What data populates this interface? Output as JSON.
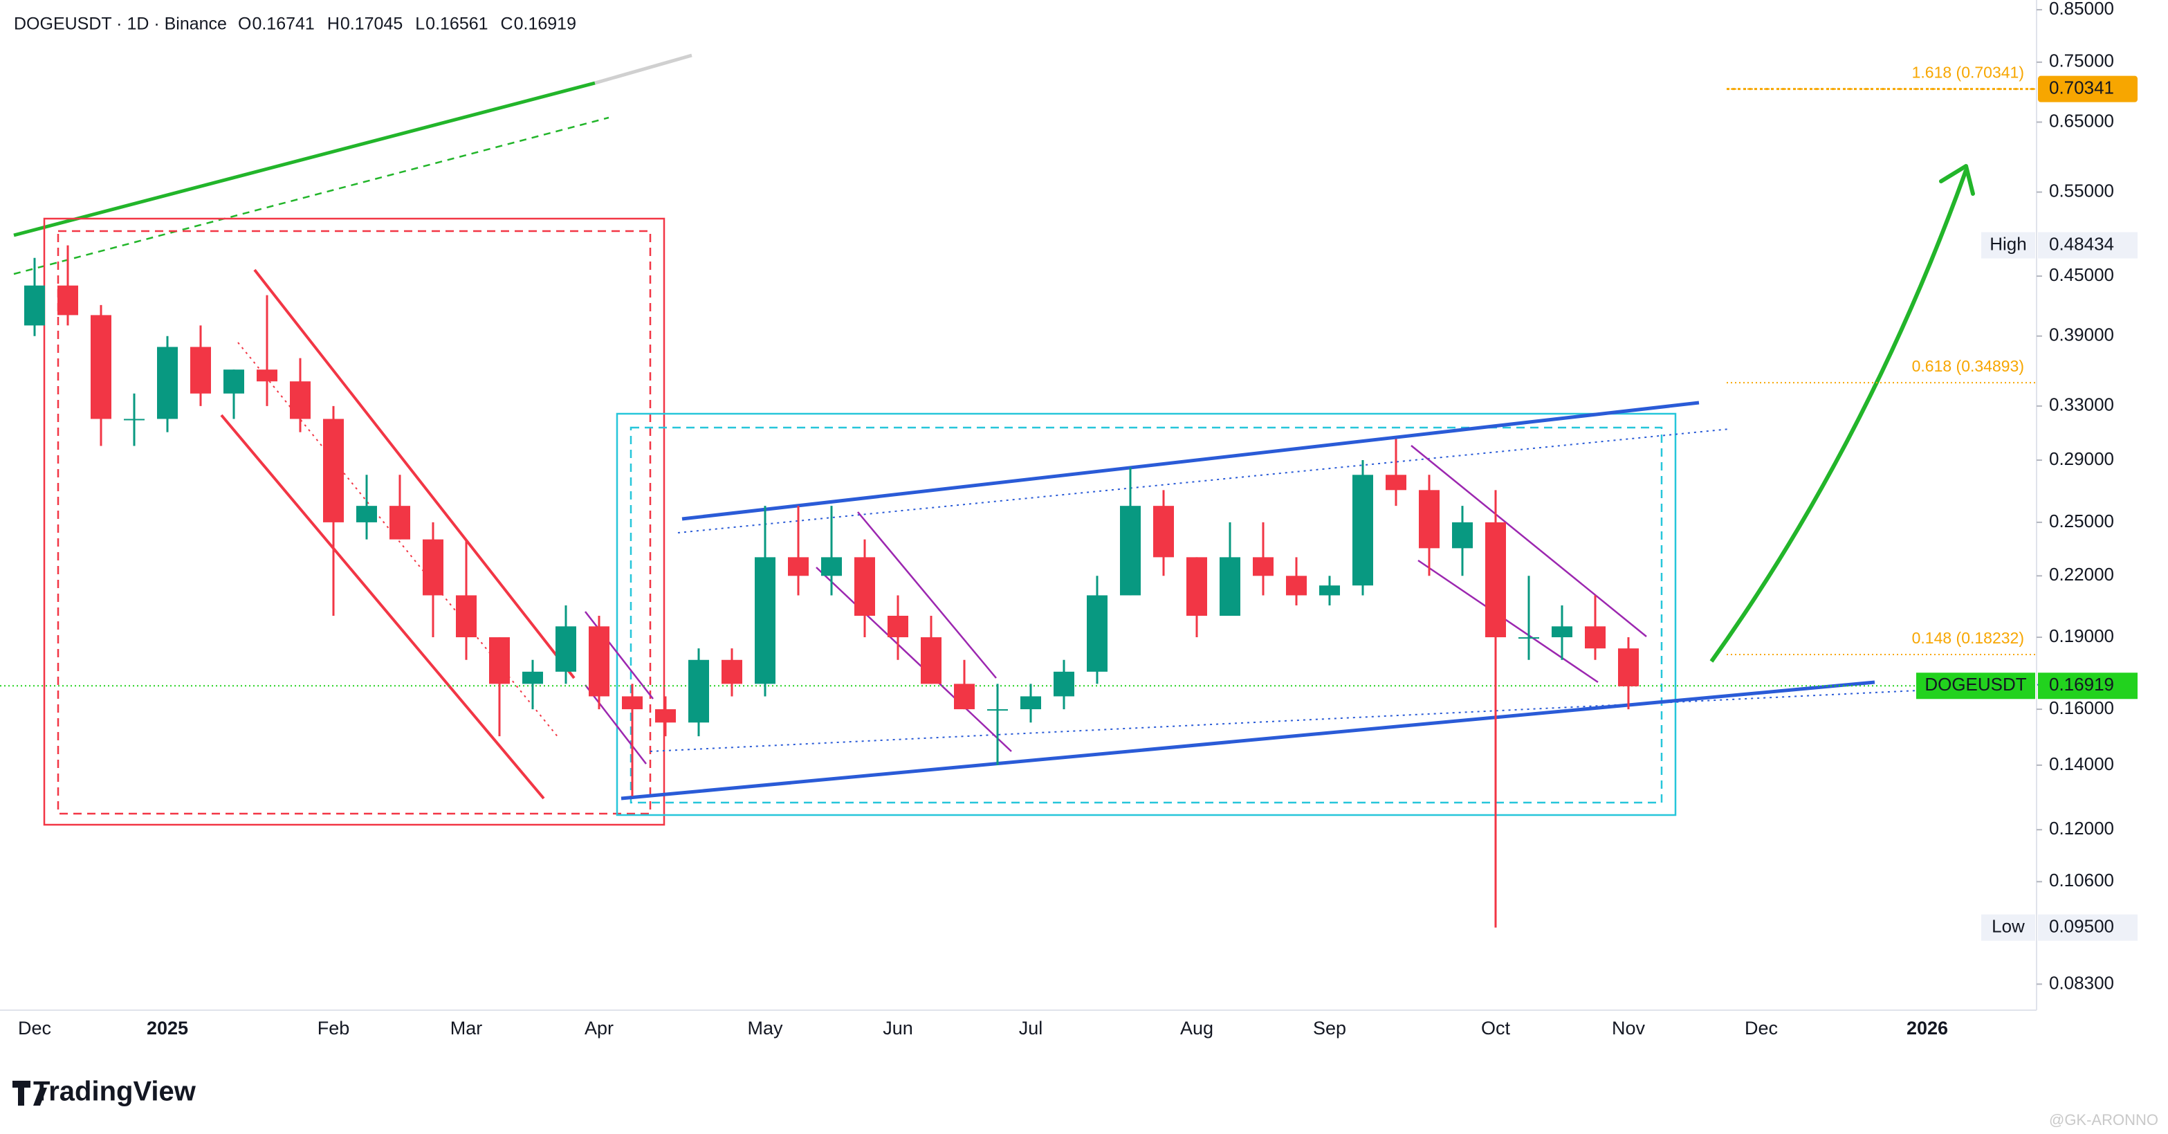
{
  "chart_data": {
    "type": "candlestick",
    "symbol_line": "DOGEUSDT · 1D · Binance",
    "ohlc_readout": [
      {
        "label": "O",
        "value": 0.16741
      },
      {
        "label": "H",
        "value": 0.17045
      },
      {
        "label": "L",
        "value": 0.16561
      },
      {
        "label": "C",
        "value": 0.16919
      }
    ],
    "log_scale": true,
    "up_color": "#089981",
    "down_color": "#f23645",
    "ylim": [
      0.078,
      0.87
    ],
    "yticks": [
      {
        "value": 0.85,
        "label": "0.85000"
      },
      {
        "value": 0.75,
        "label": "0.75000"
      },
      {
        "value": 0.65,
        "label": "0.65000"
      },
      {
        "value": 0.55,
        "label": "0.55000"
      },
      {
        "value": 0.45,
        "label": "0.45000"
      },
      {
        "value": 0.39,
        "label": "0.39000"
      },
      {
        "value": 0.33,
        "label": "0.33000"
      },
      {
        "value": 0.29,
        "label": "0.29000"
      },
      {
        "value": 0.25,
        "label": "0.25000"
      },
      {
        "value": 0.22,
        "label": "0.22000"
      },
      {
        "value": 0.19,
        "label": "0.19000"
      },
      {
        "value": 0.16,
        "label": "0.16000"
      },
      {
        "value": 0.14,
        "label": "0.14000"
      },
      {
        "value": 0.12,
        "label": "0.12000"
      },
      {
        "value": 0.106,
        "label": "0.10600"
      },
      {
        "value": 0.083,
        "label": "0.08300"
      }
    ],
    "categories": [
      "Dec",
      null,
      null,
      null,
      "2025",
      null,
      null,
      null,
      null,
      "Feb",
      null,
      null,
      null,
      "Mar",
      null,
      null,
      null,
      "Apr",
      null,
      null,
      null,
      null,
      "May",
      null,
      null,
      null,
      "Jun",
      null,
      null,
      null,
      "Jul",
      null,
      null,
      null,
      null,
      "Aug",
      null,
      null,
      null,
      "Sep",
      null,
      null,
      null,
      null,
      "Oct",
      null,
      null,
      null,
      "Nov",
      null,
      null,
      null,
      "Dec",
      null,
      null,
      null,
      null,
      "2026",
      null,
      null
    ],
    "open": [
      0.4,
      0.44,
      0.41,
      0.32,
      0.32,
      0.38,
      0.34,
      0.36,
      0.35,
      0.32,
      0.25,
      0.26,
      0.24,
      0.21,
      0.19,
      0.17,
      0.175,
      0.195,
      0.165,
      0.16,
      0.155,
      0.18,
      0.17,
      0.23,
      0.22,
      0.23,
      0.2,
      0.19,
      0.17,
      0.16,
      0.16,
      0.165,
      0.175,
      0.21,
      0.26,
      0.23,
      0.2,
      0.23,
      0.22,
      0.21,
      0.215,
      0.28,
      0.27,
      0.235,
      0.25,
      0.19,
      0.19,
      0.195,
      0.185,
      null,
      null,
      null,
      null,
      null,
      null,
      null,
      null,
      null,
      null,
      null
    ],
    "high": [
      0.47,
      0.48434,
      0.42,
      0.34,
      0.39,
      0.4,
      0.36,
      0.43,
      0.37,
      0.33,
      0.28,
      0.28,
      0.25,
      0.24,
      0.19,
      0.18,
      0.205,
      0.2,
      0.17,
      0.165,
      0.185,
      0.185,
      0.26,
      0.26,
      0.26,
      0.24,
      0.21,
      0.2,
      0.18,
      0.17,
      0.17,
      0.18,
      0.22,
      0.285,
      0.27,
      0.23,
      0.25,
      0.25,
      0.23,
      0.22,
      0.29,
      0.305,
      0.28,
      0.26,
      0.27,
      0.22,
      0.205,
      0.21,
      0.19,
      null,
      null,
      null,
      null,
      null,
      null,
      null,
      null,
      null,
      null,
      null
    ],
    "low": [
      0.39,
      0.4,
      0.3,
      0.3,
      0.31,
      0.33,
      0.32,
      0.33,
      0.31,
      0.2,
      0.24,
      0.24,
      0.19,
      0.18,
      0.15,
      0.16,
      0.17,
      0.16,
      0.13,
      0.15,
      0.15,
      0.165,
      0.165,
      0.21,
      0.21,
      0.19,
      0.18,
      0.17,
      0.16,
      0.14,
      0.155,
      0.16,
      0.17,
      0.21,
      0.22,
      0.19,
      0.2,
      0.21,
      0.205,
      0.205,
      0.21,
      0.26,
      0.22,
      0.22,
      0.095,
      0.18,
      0.18,
      0.18,
      0.16,
      null,
      null,
      null,
      null,
      null,
      null,
      null,
      null,
      null,
      null,
      null
    ],
    "close": [
      0.44,
      0.41,
      0.32,
      0.32,
      0.38,
      0.34,
      0.36,
      0.35,
      0.32,
      0.25,
      0.26,
      0.24,
      0.21,
      0.19,
      0.17,
      0.175,
      0.195,
      0.165,
      0.16,
      0.155,
      0.18,
      0.17,
      0.23,
      0.22,
      0.23,
      0.2,
      0.19,
      0.17,
      0.16,
      0.16,
      0.165,
      0.175,
      0.21,
      0.26,
      0.23,
      0.2,
      0.23,
      0.22,
      0.21,
      0.215,
      0.28,
      0.27,
      0.235,
      0.25,
      0.19,
      0.19,
      0.195,
      0.185,
      0.169,
      null,
      null,
      null,
      null,
      null,
      null,
      null,
      null,
      null,
      null,
      null
    ],
    "fib_levels": [
      {
        "label": "1.618 (0.70341)",
        "value": 0.70341,
        "color": "#f7a600"
      },
      {
        "label": "0.618 (0.34893)",
        "value": 0.34893,
        "color": "#f7a600"
      },
      {
        "label": "0.148 (0.18232)",
        "value": 0.18232,
        "color": "#f7a600"
      }
    ],
    "price_tag": {
      "value": 0.70341,
      "color": "#f7a600"
    },
    "last_price": {
      "name": "DOGEUSDT",
      "value": 0.16919,
      "color": "#22d21e"
    },
    "markers": [
      {
        "name": "High",
        "value": 0.48434
      },
      {
        "name": "Low",
        "value": 0.095,
        "value_label": "0.09500"
      }
    ],
    "brand": "TradingView",
    "watermark": "@GK-ARONNO"
  }
}
